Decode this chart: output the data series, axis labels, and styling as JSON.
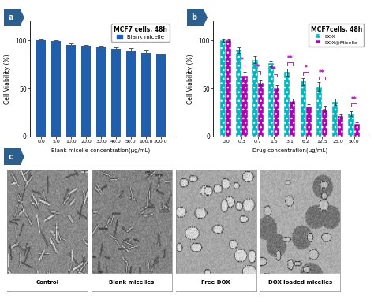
{
  "panel_a": {
    "title": "MCF7 cells, 48h",
    "legend": "Blank micelle",
    "xlabel": "Blank micelle concentration(μg/mL)",
    "ylabel": "Cell Viability (%)",
    "categories": [
      "0.0",
      "5.0",
      "10.0",
      "20.0",
      "30.0",
      "40.0",
      "50.0",
      "100.0",
      "200.0"
    ],
    "values": [
      100,
      99,
      95,
      94,
      93,
      91,
      89,
      87,
      85
    ],
    "errors": [
      0.8,
      1.2,
      1.5,
      1.3,
      1.5,
      2.0,
      2.8,
      2.5,
      1.2
    ],
    "bar_color": "#1F5FAD",
    "ylim": [
      0,
      120
    ],
    "yticks": [
      0,
      50,
      100
    ]
  },
  "panel_b": {
    "title": "MCF7cells, 48h",
    "legend_dox": "DOX",
    "legend_dox_micelle": "DOX@Micelle",
    "xlabel": "Drug concentration(μg/mL)",
    "ylabel": "Cell Viability (%)",
    "categories": [
      "0.0",
      "0.3",
      "0.7",
      "1.5",
      "3.1",
      "6.2",
      "12.5",
      "25.0",
      "50.0"
    ],
    "values_dox": [
      100,
      90,
      80,
      76,
      67,
      57,
      52,
      36,
      24
    ],
    "values_dox_micelle": [
      100,
      63,
      56,
      50,
      37,
      31,
      29,
      21,
      13
    ],
    "errors_dox": [
      1.2,
      3.0,
      3.5,
      3.0,
      3.5,
      4.0,
      4.5,
      3.5,
      2.5
    ],
    "errors_dox_micelle": [
      1.2,
      4.0,
      2.5,
      3.0,
      2.5,
      2.5,
      2.5,
      2.0,
      1.8
    ],
    "color_dox": "#00B8BE",
    "color_dox_micelle": "#B000B8",
    "ylim": [
      0,
      120
    ],
    "yticks": [
      0,
      50,
      100
    ],
    "sig_positions": [
      {
        "xi": 1,
        "yi": 72,
        "label": "*"
      },
      {
        "xi": 2,
        "yi": 65,
        "label": "**"
      },
      {
        "xi": 3,
        "yi": 62,
        "label": "**"
      },
      {
        "xi": 4,
        "yi": 74,
        "label": "**"
      },
      {
        "xi": 5,
        "yi": 64,
        "label": "*"
      },
      {
        "xi": 6,
        "yi": 59,
        "label": "**"
      },
      {
        "xi": 8,
        "yi": 31,
        "label": "**"
      }
    ]
  },
  "panel_c": {
    "labels": [
      "Control",
      "Blank micelles",
      "Free DOX",
      "DOX-loaded micelles"
    ],
    "bg_colors": [
      "#7A7A7A",
      "#787878",
      "#848484",
      "#888888"
    ]
  },
  "background_color": "#FFFFFF",
  "panel_label_bg": "#2B5F8E",
  "sep_line_color": "#C8C8C8"
}
